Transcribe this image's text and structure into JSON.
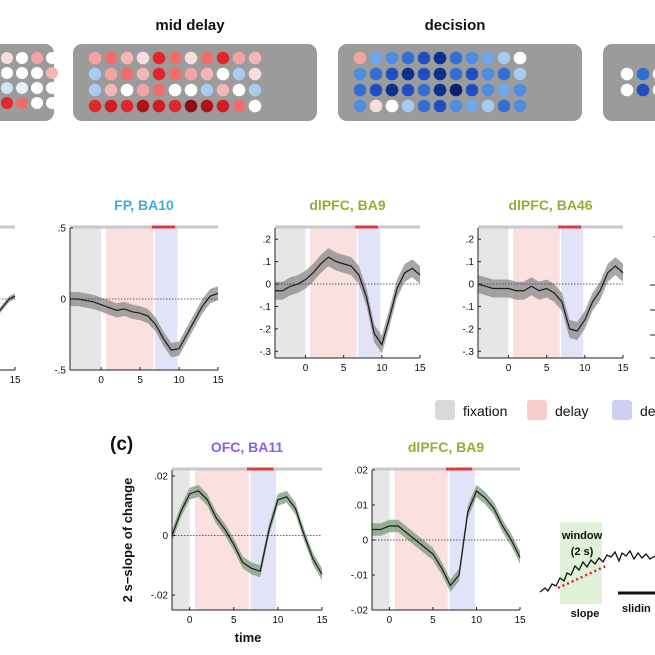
{
  "top_row": {
    "labels": [
      "mid delay",
      "decision"
    ],
    "grids": [
      {
        "rows": [
          [
            "#f6dede",
            "#ffffff",
            "#f4a3a3",
            "#ffffff",
            "#ffffff"
          ],
          [
            "#ffffff",
            "#ffffff",
            "#ffffff",
            "#f4b5b5",
            "#ffffff"
          ],
          [
            "#cfe3f7",
            "#e8f0fa",
            "#ffffff",
            "#ffffff",
            "#ffffff"
          ],
          [
            "#e2262b",
            "#f06b6b",
            "#ffffff",
            "#ffffff",
            "#ffffff"
          ]
        ]
      },
      {
        "rows": [
          [
            "#f4a3a3",
            "#f06b6b",
            "#f4b5b5",
            "#f6dede",
            "#e2262b",
            "#f06b6b",
            "#f6dede",
            "#f06b6b",
            "#e2262b",
            "#f4a3a3",
            "#f4b5b5"
          ],
          [
            "#a9cbf0",
            "#f4a3a3",
            "#f06b6b",
            "#f4b5b5",
            "#e2262b",
            "#f06b6b",
            "#f4a3a3",
            "#f4b5b5",
            "#ffffff",
            "#a9cbf0",
            "#f6dede"
          ],
          [
            "#a9cbf0",
            "#f4b5b5",
            "#ffffff",
            "#f4a3a3",
            "#f06b6b",
            "#ffffff",
            "#ffffff",
            "#a9cbf0",
            "#f4b5b5",
            "#ffffff",
            "#a9cbf0"
          ],
          [
            "#e2262b",
            "#d31b24",
            "#e2262b",
            "#b0121b",
            "#d31b24",
            "#e2262b",
            "#8e0d15",
            "#b0121b",
            "#d31b24",
            "#f06b6b",
            "#ffffff"
          ]
        ]
      },
      {
        "rows": [
          [
            "#f4a3a3",
            "#6fa8e8",
            "#4d8de0",
            "#2f6fd4",
            "#1f4fbf",
            "#0d2f8f",
            "#2f6fd4",
            "#4d8de0",
            "#6fa8e8",
            "#a9cbf0",
            "#ffffff"
          ],
          [
            "#4d8de0",
            "#2f6fd4",
            "#1f4fbf",
            "#0d2f8f",
            "#1f4fbf",
            "#0d2f8f",
            "#2f6fd4",
            "#1f4fbf",
            "#4d8de0",
            "#2f6fd4",
            "#a9cbf0"
          ],
          [
            "#2f6fd4",
            "#1f4fbf",
            "#0d2f8f",
            "#1f4fbf",
            "#2f6fd4",
            "#0d2f8f",
            "#0a1f6f",
            "#1f4fbf",
            "#4d8de0",
            "#6fa8e8",
            "#4d8de0"
          ],
          [
            "#4d8de0",
            "#f6dede",
            "#ffffff",
            "#a9cbf0",
            "#2f6fd4",
            "#1f4fbf",
            "#4d8de0",
            "#6fa8e8",
            "#a9cbf0",
            "#2f6fd4",
            "#4d8de0"
          ]
        ]
      },
      {
        "rows": [
          [
            "#ffffff",
            "#2f6fd4",
            "#ffffff"
          ],
          [
            "#ffffff",
            "#1f4fbf",
            "#ffffff"
          ]
        ]
      }
    ]
  },
  "legend": {
    "items": [
      {
        "label": "fixation",
        "color": "#d9d9d9"
      },
      {
        "label": "delay",
        "color": "#f8cccc"
      },
      {
        "label": "de",
        "color": "#cfcff2"
      }
    ]
  },
  "panel_c": {
    "label": "(c)",
    "ylabel": "2 s−slope of change",
    "xlabel": "time"
  },
  "inset": {
    "window_label": "window",
    "window_sub": "(2 s)",
    "slope_label": "slope",
    "sliding_label": "slidin"
  },
  "chart_data": [
    {
      "type": "line",
      "title": "",
      "title_color": "#2a2a2a",
      "partial": true,
      "x": [
        -5,
        -3,
        -1,
        1,
        3,
        5,
        7,
        9,
        11,
        13,
        15
      ],
      "values": [
        0.02,
        0.04,
        0.05,
        0.04,
        0.02,
        0.0,
        -0.05,
        -0.1,
        -0.05,
        0.0,
        0.02
      ],
      "xticks": [
        15
      ],
      "ylim": [
        -0.5,
        0.5
      ],
      "xlim": [
        -4,
        15
      ],
      "band_color": "#8a8a8a"
    },
    {
      "type": "line",
      "title": "FP, BA10",
      "title_color": "#3fa9e0",
      "x": [
        -4,
        -3,
        -2,
        -1,
        0,
        1,
        2,
        3,
        4,
        5,
        6,
        7,
        8,
        9,
        10,
        11,
        12,
        13,
        14,
        15
      ],
      "values": [
        0.0,
        0.0,
        -0.01,
        -0.02,
        -0.04,
        -0.06,
        -0.08,
        -0.07,
        -0.09,
        -0.1,
        -0.12,
        -0.18,
        -0.28,
        -0.36,
        -0.35,
        -0.25,
        -0.15,
        -0.05,
        0.02,
        0.04
      ],
      "band": 0.05,
      "xticks": [
        0,
        5,
        10,
        15
      ],
      "yticks": [
        0.5,
        0,
        -0.5
      ],
      "ylim": [
        -0.5,
        0.5
      ],
      "xlim": [
        -4,
        15
      ],
      "band_color": "#8a8a8a"
    },
    {
      "type": "line",
      "title": "dlPFC, BA9",
      "title_color": "#9aab34",
      "x": [
        -4,
        -3,
        -2,
        -1,
        0,
        1,
        2,
        3,
        4,
        5,
        6,
        7,
        8,
        9,
        10,
        11,
        12,
        13,
        14,
        15
      ],
      "values": [
        -0.03,
        -0.03,
        -0.01,
        0.0,
        0.02,
        0.05,
        0.09,
        0.12,
        0.1,
        0.09,
        0.08,
        0.04,
        -0.06,
        -0.22,
        -0.27,
        -0.15,
        -0.02,
        0.05,
        0.07,
        0.04
      ],
      "band": 0.04,
      "xticks": [
        0,
        5,
        10,
        15
      ],
      "yticks": [
        0.2,
        0.1,
        0,
        -0.1,
        -0.2,
        -0.3
      ],
      "ylim": [
        -0.33,
        0.25
      ],
      "xlim": [
        -4,
        15
      ],
      "band_color": "#8a8a8a"
    },
    {
      "type": "line",
      "title": "dlPFC, BA46",
      "title_color": "#9aab34",
      "x": [
        -4,
        -3,
        -2,
        -1,
        0,
        1,
        2,
        3,
        4,
        5,
        6,
        7,
        8,
        9,
        10,
        11,
        12,
        13,
        14,
        15
      ],
      "values": [
        0.0,
        -0.01,
        -0.02,
        -0.02,
        -0.02,
        -0.03,
        -0.03,
        -0.01,
        -0.03,
        -0.02,
        -0.04,
        -0.08,
        -0.2,
        -0.21,
        -0.16,
        -0.08,
        -0.03,
        0.05,
        0.08,
        0.05
      ],
      "band": 0.04,
      "xticks": [
        0,
        5,
        10,
        15
      ],
      "yticks": [
        0.2,
        0.1,
        0,
        -0.1,
        -0.2,
        -0.3
      ],
      "ylim": [
        -0.33,
        0.25
      ],
      "xlim": [
        -4,
        15
      ],
      "band_color": "#8a8a8a"
    },
    {
      "type": "line",
      "title": "OFC, BA11",
      "title_color": "#8b5cf6",
      "x": [
        -2,
        -1,
        0,
        1,
        2,
        3,
        4,
        5,
        6,
        7,
        8,
        9,
        10,
        11,
        12,
        13,
        14,
        15
      ],
      "values": [
        0.0,
        0.008,
        0.014,
        0.015,
        0.012,
        0.006,
        0.002,
        -0.003,
        -0.009,
        -0.011,
        -0.012,
        0.002,
        0.012,
        0.013,
        0.009,
        0.0,
        -0.008,
        -0.013
      ],
      "band": 0.002,
      "xticks": [
        0,
        5,
        10,
        15
      ],
      "yticks": [
        0.02,
        0,
        -0.02
      ],
      "ylim": [
        -0.025,
        0.022
      ],
      "xlim": [
        -2,
        15
      ],
      "band_color": "#7a9a7a"
    },
    {
      "type": "line",
      "title": "dlPFC, BA9",
      "title_color": "#9aab34",
      "x": [
        -2,
        -1,
        0,
        1,
        2,
        3,
        4,
        5,
        6,
        7,
        8,
        9,
        10,
        11,
        12,
        13,
        14,
        15
      ],
      "values": [
        0.003,
        0.003,
        0.004,
        0.004,
        0.002,
        0.0,
        -0.002,
        -0.004,
        -0.008,
        -0.013,
        -0.01,
        0.008,
        0.014,
        0.012,
        0.009,
        0.004,
        0.0,
        -0.005
      ],
      "band": 0.0018,
      "xticks": [
        0,
        5,
        10,
        15
      ],
      "yticks": [
        0.02,
        0.01,
        0,
        -0.01,
        -0.02
      ],
      "ylim": [
        -0.02,
        0.02
      ],
      "xlim": [
        -2,
        15
      ],
      "band_color": "#7a9a7a"
    }
  ]
}
